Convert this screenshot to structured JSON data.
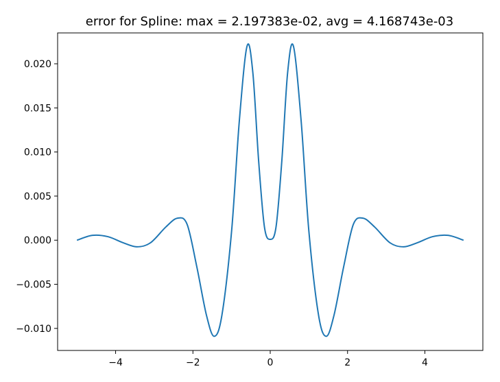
{
  "chart_data": {
    "type": "line",
    "title": "error for Spline: max = 2.197383e-02, avg = 4.168743e-03",
    "xlabel": "",
    "ylabel": "",
    "xlim": [
      -5.5,
      5.5
    ],
    "ylim": [
      -0.0125,
      0.0235
    ],
    "grid": false,
    "x_ticks": [
      {
        "value": -4,
        "label": "−4"
      },
      {
        "value": -2,
        "label": "−2"
      },
      {
        "value": 0,
        "label": "0"
      },
      {
        "value": 2,
        "label": "2"
      },
      {
        "value": 4,
        "label": "4"
      }
    ],
    "y_ticks": [
      {
        "value": -0.01,
        "label": "−0.010"
      },
      {
        "value": -0.005,
        "label": "−0.005"
      },
      {
        "value": 0,
        "label": "0.000"
      },
      {
        "value": 0.005,
        "label": "0.005"
      },
      {
        "value": 0.01,
        "label": "0.010"
      },
      {
        "value": 0.015,
        "label": "0.015"
      },
      {
        "value": 0.02,
        "label": "0.020"
      }
    ],
    "series": [
      {
        "color": "#1f77b4",
        "points": [
          [
            -5.0,
            0.0
          ],
          [
            -4.6,
            0.00055
          ],
          [
            -4.2,
            0.0004
          ],
          [
            -3.8,
            -0.0003
          ],
          [
            -3.45,
            -0.00075
          ],
          [
            -3.1,
            -0.0003
          ],
          [
            -2.7,
            0.0015
          ],
          [
            -2.4,
            0.0025
          ],
          [
            -2.15,
            0.0018
          ],
          [
            -1.9,
            -0.003
          ],
          [
            -1.65,
            -0.0085
          ],
          [
            -1.45,
            -0.0109
          ],
          [
            -1.25,
            -0.0085
          ],
          [
            -1.0,
            0.001
          ],
          [
            -0.8,
            0.0135
          ],
          [
            -0.6,
            0.022
          ],
          [
            -0.45,
            0.019
          ],
          [
            -0.3,
            0.009
          ],
          [
            -0.15,
            0.0015
          ],
          [
            0.0,
            0.0001
          ],
          [
            0.15,
            0.0015
          ],
          [
            0.3,
            0.009
          ],
          [
            0.45,
            0.019
          ],
          [
            0.6,
            0.022
          ],
          [
            0.8,
            0.0135
          ],
          [
            1.0,
            0.001
          ],
          [
            1.25,
            -0.0085
          ],
          [
            1.45,
            -0.0109
          ],
          [
            1.65,
            -0.0085
          ],
          [
            1.9,
            -0.003
          ],
          [
            2.15,
            0.0018
          ],
          [
            2.4,
            0.0025
          ],
          [
            2.7,
            0.0015
          ],
          [
            3.1,
            -0.0003
          ],
          [
            3.45,
            -0.00075
          ],
          [
            3.8,
            -0.0003
          ],
          [
            4.2,
            0.0004
          ],
          [
            4.6,
            0.00055
          ],
          [
            5.0,
            0.0
          ]
        ]
      }
    ]
  }
}
